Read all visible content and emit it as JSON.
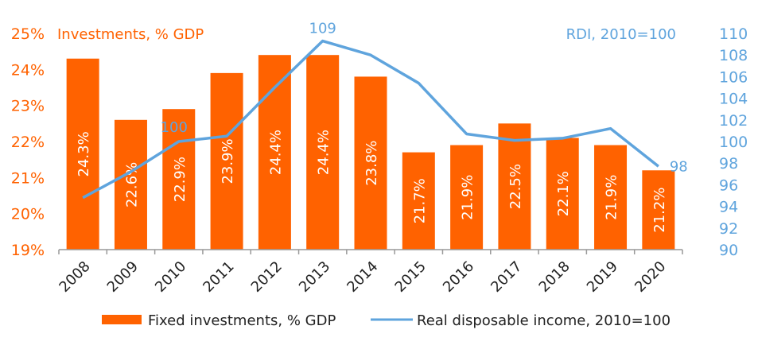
{
  "chart_data": {
    "type": "bar+line",
    "title": "",
    "categories": [
      "2008",
      "2009",
      "2010",
      "2011",
      "2012",
      "2013",
      "2014",
      "2015",
      "2016",
      "2017",
      "2018",
      "2019",
      "2020"
    ],
    "series": [
      {
        "name": "Fixed investments, % GDP",
        "type": "bar",
        "axis": "left",
        "color": "#ff6200",
        "values": [
          24.3,
          22.6,
          22.9,
          23.9,
          24.4,
          24.4,
          23.8,
          21.7,
          21.9,
          22.5,
          22.1,
          21.9,
          21.2
        ],
        "data_labels": [
          "24.3%",
          "22.6%",
          "22.9%",
          "23.9%",
          "24.4%",
          "24.4%",
          "23.8%",
          "21.7%",
          "21.9%",
          "22.5%",
          "22.1%",
          "21.9%",
          "21.2%"
        ]
      },
      {
        "name": "Real disposable income, 2010=100",
        "type": "line",
        "axis": "right",
        "color": "#5fa4dd",
        "values": [
          94.8,
          97.2,
          100.0,
          100.5,
          105.0,
          109.3,
          108.0,
          105.4,
          100.7,
          100.1,
          100.3,
          101.2,
          97.7
        ],
        "data_labels": {
          "2010": "100",
          "2013": "109",
          "2020": "98"
        }
      }
    ],
    "left_axis": {
      "title": "Investments, % GDP",
      "range": [
        19,
        25
      ],
      "ticks": [
        19,
        20,
        21,
        22,
        23,
        24,
        25
      ],
      "tick_labels": [
        "19%",
        "20%",
        "21%",
        "22%",
        "23%",
        "24%",
        "25%"
      ]
    },
    "right_axis": {
      "title": "RDI, 2010=100",
      "range": [
        90,
        110
      ],
      "ticks": [
        90,
        92,
        94,
        96,
        98,
        100,
        102,
        104,
        106,
        108,
        110
      ],
      "tick_labels": [
        "90",
        "92",
        "94",
        "96",
        "98",
        "100",
        "102",
        "104",
        "106",
        "108",
        "110"
      ]
    },
    "xlabel": "",
    "grid": false,
    "legend": {
      "position": "bottom",
      "entries": [
        "Fixed investments, % GDP",
        "Real disposable income, 2010=100"
      ]
    }
  }
}
